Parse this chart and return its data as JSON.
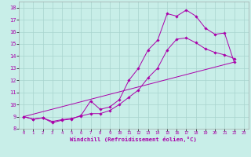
{
  "xlabel": "Windchill (Refroidissement éolien,°C)",
  "bg_color": "#c8eee8",
  "grid_color": "#a8d4ce",
  "line_color": "#aa00aa",
  "xlim_min": -0.5,
  "xlim_max": 23.5,
  "ylim_min": 8,
  "ylim_max": 18.5,
  "xticks": [
    0,
    1,
    2,
    3,
    4,
    5,
    6,
    7,
    8,
    9,
    10,
    11,
    12,
    13,
    14,
    15,
    16,
    17,
    18,
    19,
    20,
    21,
    22,
    23
  ],
  "yticks": [
    8,
    9,
    10,
    11,
    12,
    13,
    14,
    15,
    16,
    17,
    18
  ],
  "line1_x": [
    0,
    22
  ],
  "line1_y": [
    9.0,
    13.5
  ],
  "line2_x": [
    0,
    1,
    2,
    3,
    4,
    5,
    6,
    7,
    8,
    9,
    10,
    11,
    12,
    13,
    14,
    15,
    16,
    17,
    18,
    19,
    20,
    21,
    22
  ],
  "line2_y": [
    9.0,
    8.8,
    8.9,
    8.5,
    8.7,
    8.8,
    9.1,
    10.3,
    9.6,
    9.8,
    10.4,
    12.0,
    13.0,
    14.5,
    15.3,
    17.5,
    17.3,
    17.8,
    17.3,
    16.3,
    15.8,
    15.9,
    13.5
  ],
  "line3_x": [
    0,
    1,
    2,
    3,
    4,
    5,
    6,
    7,
    8,
    9,
    10,
    11,
    12,
    13,
    14,
    15,
    16,
    17,
    18,
    19,
    20,
    21,
    22
  ],
  "line3_y": [
    9.0,
    8.8,
    8.9,
    8.6,
    8.75,
    8.85,
    9.05,
    9.25,
    9.25,
    9.5,
    10.0,
    10.6,
    11.2,
    12.2,
    13.0,
    14.5,
    15.4,
    15.5,
    15.1,
    14.6,
    14.3,
    14.1,
    13.8
  ]
}
